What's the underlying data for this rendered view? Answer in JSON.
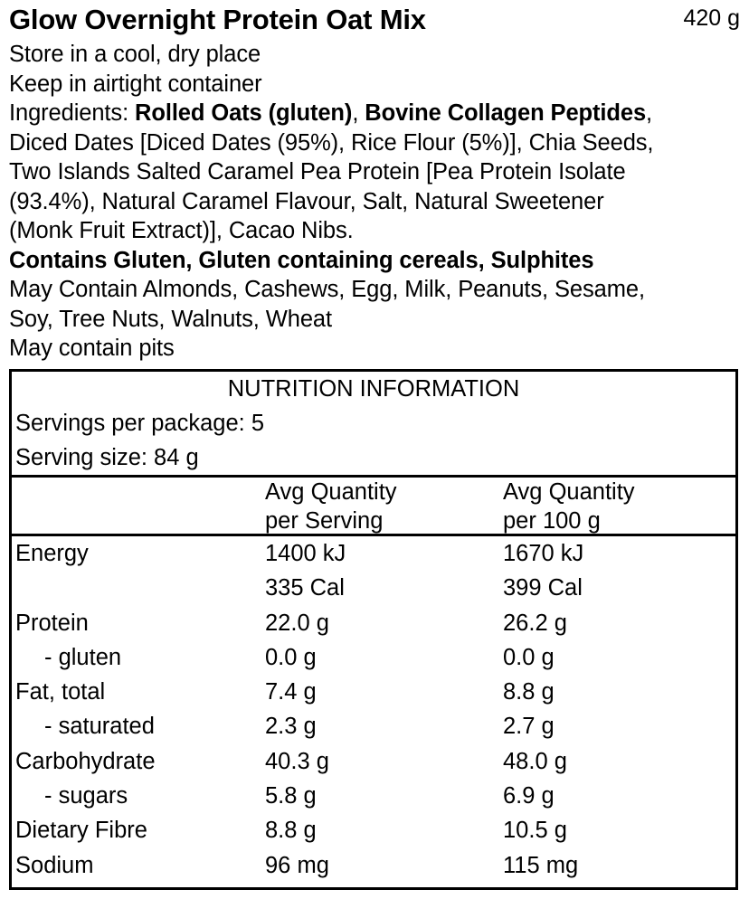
{
  "product": {
    "name": "Glow Overnight Protein Oat Mix",
    "net_weight": "420 g"
  },
  "storage": [
    "Store in a cool, dry place",
    "Keep in airtight container"
  ],
  "ingredients": {
    "label": "Ingredients: ",
    "bold_1": "Rolled Oats (gluten)",
    "sep_1": ", ",
    "bold_2": "Bovine Collagen Peptides",
    "sep_2": ",",
    "lines": [
      "Diced Dates [Diced Dates (95%), Rice Flour (5%)], Chia Seeds,",
      "Two Islands Salted Caramel Pea Protein [Pea Protein Isolate",
      "(93.4%), Natural Caramel Flavour, Salt, Natural Sweetener",
      "(Monk Fruit Extract)], Cacao Nibs."
    ]
  },
  "allergens": {
    "contains": "Contains Gluten, Gluten containing cereals, Sulphites",
    "may_contain_lines": [
      "May Contain Almonds, Cashews, Egg, Milk, Peanuts, Sesame,",
      "Soy, Tree Nuts, Walnuts, Wheat"
    ],
    "pits": "May contain pits"
  },
  "nutrition": {
    "title": "NUTRITION INFORMATION",
    "servings_per_package": "Servings per package: 5",
    "serving_size": "Serving size: 84 g",
    "columns": {
      "per_serving_line1": "Avg Quantity",
      "per_serving_line2": "per Serving",
      "per_100g_line1": "Avg Quantity",
      "per_100g_line2": "per 100 g"
    },
    "rows": [
      {
        "name": "Energy",
        "per_serving": "1400 kJ",
        "per_100g": "1670 kJ",
        "sub": false
      },
      {
        "name": "",
        "per_serving": "335 Cal",
        "per_100g": "399 Cal",
        "sub": false
      },
      {
        "name": "Protein",
        "per_serving": "22.0 g",
        "per_100g": "26.2 g",
        "sub": false
      },
      {
        "name": "- gluten",
        "per_serving": "0.0 g",
        "per_100g": "0.0 g",
        "sub": true
      },
      {
        "name": "Fat, total",
        "per_serving": "7.4 g",
        "per_100g": "8.8 g",
        "sub": false
      },
      {
        "name": "- saturated",
        "per_serving": "2.3 g",
        "per_100g": "2.7 g",
        "sub": true
      },
      {
        "name": "Carbohydrate",
        "per_serving": "40.3 g",
        "per_100g": "48.0 g",
        "sub": false
      },
      {
        "name": "- sugars",
        "per_serving": "5.8 g",
        "per_100g": "6.9 g",
        "sub": true
      },
      {
        "name": "Dietary Fibre",
        "per_serving": "8.8 g",
        "per_100g": "10.5 g",
        "sub": false
      },
      {
        "name": "Sodium",
        "per_serving": "96 mg",
        "per_100g": "115 mg",
        "sub": false
      }
    ]
  }
}
